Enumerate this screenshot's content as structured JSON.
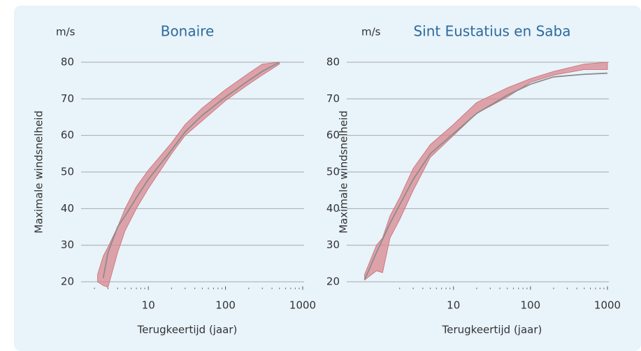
{
  "chart_data": [
    {
      "type": "line",
      "title": "Bonaire",
      "y_unit": "m/s",
      "ylabel": "Maximale windsnelheid",
      "xlabel": "Terugkeertijd (jaar)",
      "log_x": true,
      "xlim": [
        1.8,
        1000
      ],
      "ylim": [
        18,
        80
      ],
      "yticks": [
        20,
        30,
        40,
        50,
        60,
        70,
        80
      ],
      "grid": true,
      "xticks": [
        10,
        100,
        1000
      ],
      "x_minor_ticks": [
        2,
        3,
        4,
        5,
        6,
        7,
        8,
        9,
        20,
        30,
        40,
        50,
        60,
        70,
        80,
        90,
        200,
        300,
        400,
        500,
        600,
        700,
        800,
        900
      ],
      "band": {
        "color": "#d9878d",
        "x": [
          2.2,
          2.6,
          3,
          4,
          5,
          7,
          10,
          20,
          30,
          50,
          100,
          200,
          300,
          500
        ],
        "lower": [
          20,
          19,
          18.5,
          28,
          34,
          40,
          45.5,
          55,
          60,
          64,
          69.5,
          74,
          76.5,
          79.5
        ],
        "upper": [
          22,
          27,
          29.5,
          35,
          40,
          46,
          50.5,
          58,
          63,
          67.5,
          72.5,
          77,
          79.5,
          80
        ]
      },
      "line": {
        "color": "#8c8c8c",
        "x": [
          2.6,
          3,
          4,
          5,
          7,
          10,
          20,
          30,
          50,
          100,
          200,
          300,
          500
        ],
        "values": [
          21,
          28,
          35,
          38,
          43,
          48,
          56,
          61,
          65.5,
          70.5,
          75,
          77.5,
          80
        ]
      }
    },
    {
      "type": "line",
      "title": "Sint Eustatius en Saba",
      "y_unit": "m/s",
      "ylabel": "Maximale windsnelheid",
      "xlabel": "Terugkeertijd (jaar)",
      "log_x": true,
      "xlim": [
        0.55,
        1000
      ],
      "ylim": [
        18,
        80
      ],
      "yticks": [
        20,
        30,
        40,
        50,
        60,
        70,
        80
      ],
      "grid": true,
      "xticks": [
        10,
        100,
        1000
      ],
      "x_minor_ticks": [
        2,
        3,
        4,
        5,
        6,
        7,
        8,
        9,
        20,
        30,
        40,
        50,
        60,
        70,
        80,
        90,
        200,
        300,
        400,
        500,
        600,
        700,
        800,
        900
      ],
      "band": {
        "color": "#d9878d",
        "x": [
          0.7,
          1,
          1.2,
          1.5,
          2,
          3,
          5,
          10,
          20,
          50,
          100,
          200,
          500,
          1000
        ],
        "lower": [
          20.5,
          23,
          22.5,
          32,
          37,
          45,
          54,
          60,
          66,
          70.5,
          74.5,
          76.5,
          78,
          78
        ],
        "upper": [
          22,
          30,
          32,
          38,
          43,
          51,
          57.5,
          63,
          69,
          73,
          75.5,
          77.5,
          79.5,
          80
        ]
      },
      "line": {
        "color": "#8c8c8c",
        "x": [
          0.7,
          1,
          1.5,
          2,
          3,
          5,
          10,
          20,
          50,
          100,
          200,
          500,
          1000
        ],
        "values": [
          20.5,
          28,
          36,
          41,
          48,
          55,
          60.5,
          66,
          71,
          74,
          76,
          76.7,
          77
        ]
      }
    }
  ]
}
